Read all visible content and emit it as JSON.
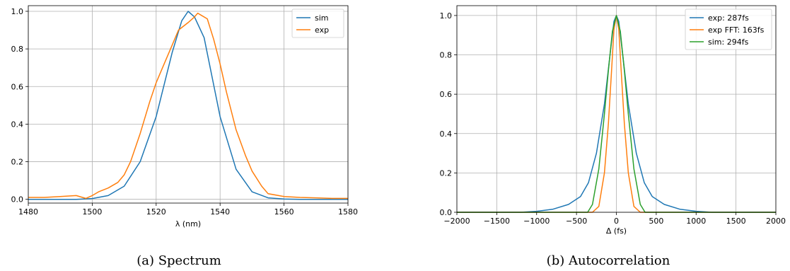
{
  "colors": {
    "blue": "#1f77b4",
    "orange": "#ff7f0e",
    "green": "#2ca02c",
    "grid": "#b0b0b0"
  },
  "chart_data": [
    {
      "type": "line",
      "caption": "(a) Spectrum",
      "xlabel": "λ (nm)",
      "ylabel": "",
      "xlim": [
        1480,
        1580
      ],
      "ylim": [
        -0.02,
        1.03
      ],
      "xticks": [
        1480,
        1500,
        1520,
        1540,
        1560,
        1580
      ],
      "yticks": [
        0.0,
        0.2,
        0.4,
        0.6,
        0.8,
        1.0
      ],
      "grid": true,
      "legend": "top-right",
      "series": [
        {
          "name": "sim",
          "color": "#1f77b4",
          "x": [
            1480,
            1495,
            1500,
            1505,
            1510,
            1515,
            1520,
            1525,
            1528,
            1530,
            1532,
            1535,
            1540,
            1545,
            1550,
            1555,
            1560,
            1565,
            1580
          ],
          "y": [
            0.0,
            0.0,
            0.004,
            0.02,
            0.07,
            0.2,
            0.44,
            0.78,
            0.95,
            1.0,
            0.97,
            0.86,
            0.44,
            0.16,
            0.04,
            0.008,
            0.002,
            0.0,
            0.0
          ]
        },
        {
          "name": "exp",
          "color": "#ff7f0e",
          "x": [
            1480,
            1485,
            1490,
            1495,
            1498,
            1500,
            1502,
            1505,
            1508,
            1510,
            1512,
            1515,
            1518,
            1520,
            1522,
            1525,
            1527,
            1530,
            1532,
            1533,
            1534,
            1536,
            1538,
            1540,
            1542,
            1545,
            1548,
            1550,
            1553,
            1555,
            1560,
            1565,
            1570,
            1575,
            1580
          ],
          "y": [
            0.01,
            0.01,
            0.015,
            0.02,
            0.005,
            0.02,
            0.04,
            0.06,
            0.09,
            0.13,
            0.2,
            0.35,
            0.52,
            0.62,
            0.7,
            0.82,
            0.9,
            0.94,
            0.97,
            0.99,
            0.98,
            0.96,
            0.85,
            0.72,
            0.57,
            0.37,
            0.23,
            0.15,
            0.07,
            0.03,
            0.015,
            0.01,
            0.008,
            0.005,
            0.005
          ]
        }
      ]
    },
    {
      "type": "line",
      "caption": "(b) Autocorrelation",
      "xlabel": "Δ (fs)",
      "ylabel": "",
      "xlim": [
        -2000,
        2000
      ],
      "ylim": [
        0.0,
        1.05
      ],
      "xticks": [
        -2000,
        -1500,
        -1000,
        -500,
        0,
        500,
        1000,
        1500,
        2000
      ],
      "xtick_labels": [
        "−2000",
        "−1500",
        "−1000",
        "−500",
        "0",
        "500",
        "1000",
        "1500",
        "2000"
      ],
      "yticks": [
        0.0,
        0.2,
        0.4,
        0.6,
        0.8,
        1.0
      ],
      "grid": true,
      "legend": "top-right",
      "series": [
        {
          "name": "exp: 287fs",
          "color": "#1f77b4",
          "x": [
            -2000,
            -1200,
            -1000,
            -800,
            -600,
            -450,
            -350,
            -250,
            -150,
            -80,
            -30,
            0,
            30,
            80,
            150,
            250,
            350,
            450,
            600,
            800,
            1000,
            1200,
            2000
          ],
          "y": [
            0.0,
            0.0,
            0.005,
            0.015,
            0.04,
            0.08,
            0.15,
            0.3,
            0.55,
            0.8,
            0.97,
            1.0,
            0.97,
            0.8,
            0.55,
            0.3,
            0.15,
            0.08,
            0.04,
            0.015,
            0.005,
            0.0,
            0.0
          ]
        },
        {
          "name": "exp FFT: 163fs",
          "color": "#ff7f0e",
          "x": [
            -2000,
            -300,
            -220,
            -150,
            -100,
            -60,
            -30,
            0,
            30,
            60,
            100,
            150,
            220,
            300,
            2000
          ],
          "y": [
            0.0,
            0.0,
            0.03,
            0.2,
            0.45,
            0.72,
            0.93,
            1.0,
            0.93,
            0.72,
            0.45,
            0.2,
            0.03,
            0.0,
            0.0
          ]
        },
        {
          "name": "sim: 294fs",
          "color": "#2ca02c",
          "x": [
            -2000,
            -360,
            -300,
            -220,
            -150,
            -100,
            -50,
            0,
            50,
            100,
            150,
            220,
            300,
            360,
            2000
          ],
          "y": [
            0.0,
            0.0,
            0.04,
            0.22,
            0.5,
            0.72,
            0.92,
            1.0,
            0.92,
            0.72,
            0.5,
            0.22,
            0.04,
            0.0,
            0.0
          ]
        }
      ]
    }
  ]
}
